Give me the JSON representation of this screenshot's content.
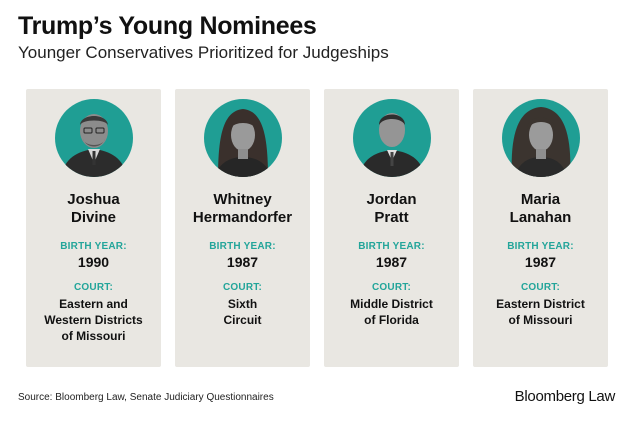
{
  "header": {
    "title": "Trump’s Young Nominees",
    "subtitle": "Younger Conservatives Prioritized for Judgeships"
  },
  "labels": {
    "birth_year": "BIRTH YEAR:",
    "court": "COURT:"
  },
  "nominees": [
    {
      "name_line1": "Joshua",
      "name_line2": "Divine",
      "birth_year": "1990",
      "court_lines": [
        "Eastern and",
        "Western Districts",
        "of Missouri"
      ]
    },
    {
      "name_line1": "Whitney",
      "name_line2": "Hermandorfer",
      "birth_year": "1987",
      "court_lines": [
        "Sixth",
        "Circuit"
      ]
    },
    {
      "name_line1": "Jordan",
      "name_line2": "Pratt",
      "birth_year": "1987",
      "court_lines": [
        "Middle District",
        "of Florida"
      ]
    },
    {
      "name_line1": "Maria",
      "name_line2": "Lanahan",
      "birth_year": "1987",
      "court_lines": [
        "Eastern District",
        "of Missouri"
      ]
    }
  ],
  "footer": {
    "source": "Source: Bloomberg Law, Senate Judiciary Questionnaires",
    "brand": "Bloomberg Law"
  },
  "colors": {
    "accent_teal": "#23a59a",
    "card_background": "#e9e7e2"
  }
}
